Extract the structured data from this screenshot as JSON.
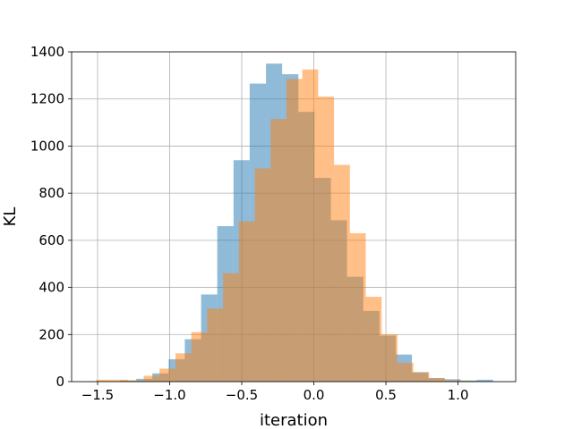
{
  "chart_data": {
    "type": "histogram",
    "title": "",
    "xlabel": "iteration",
    "ylabel": "KL",
    "xlim": [
      -1.68,
      1.4
    ],
    "ylim": [
      0,
      1400
    ],
    "xticks": [
      -1.5,
      -1.0,
      -0.5,
      0.0,
      0.5,
      1.0
    ],
    "xtick_labels": [
      "−1.5",
      "−1.0",
      "−0.5",
      "0.0",
      "0.5",
      "1.0"
    ],
    "yticks": [
      0,
      200,
      400,
      600,
      800,
      1000,
      1200,
      1400
    ],
    "ytick_labels": [
      "0",
      "200",
      "400",
      "600",
      "800",
      "1000",
      "1200",
      "1400"
    ],
    "grid": true,
    "legend": false,
    "series": [
      {
        "color": "#1f77b4",
        "opacity": 0.5,
        "bins": [
          {
            "x0": -1.345,
            "x1": -1.232,
            "count": 5
          },
          {
            "x0": -1.232,
            "x1": -1.12,
            "count": 12
          },
          {
            "x0": -1.12,
            "x1": -1.007,
            "count": 35
          },
          {
            "x0": -1.007,
            "x1": -0.895,
            "count": 95
          },
          {
            "x0": -0.895,
            "x1": -0.782,
            "count": 180
          },
          {
            "x0": -0.782,
            "x1": -0.67,
            "count": 370
          },
          {
            "x0": -0.67,
            "x1": -0.557,
            "count": 660
          },
          {
            "x0": -0.557,
            "x1": -0.445,
            "count": 940
          },
          {
            "x0": -0.445,
            "x1": -0.332,
            "count": 1265
          },
          {
            "x0": -0.332,
            "x1": -0.22,
            "count": 1350
          },
          {
            "x0": -0.22,
            "x1": -0.107,
            "count": 1305
          },
          {
            "x0": -0.107,
            "x1": 0.005,
            "count": 1145
          },
          {
            "x0": 0.005,
            "x1": 0.118,
            "count": 865
          },
          {
            "x0": 0.118,
            "x1": 0.23,
            "count": 685
          },
          {
            "x0": 0.23,
            "x1": 0.343,
            "count": 445
          },
          {
            "x0": 0.343,
            "x1": 0.455,
            "count": 300
          },
          {
            "x0": 0.455,
            "x1": 0.568,
            "count": 195
          },
          {
            "x0": 0.568,
            "x1": 0.68,
            "count": 115
          },
          {
            "x0": 0.68,
            "x1": 0.793,
            "count": 40
          },
          {
            "x0": 0.793,
            "x1": 0.905,
            "count": 15
          },
          {
            "x0": 0.905,
            "x1": 1.018,
            "count": 10
          },
          {
            "x0": 1.018,
            "x1": 1.13,
            "count": 5
          },
          {
            "x0": 1.13,
            "x1": 1.243,
            "count": 8
          }
        ]
      },
      {
        "color": "#ff7f0e",
        "opacity": 0.5,
        "bins": [
          {
            "x0": -1.51,
            "x1": -1.4,
            "count": 8
          },
          {
            "x0": -1.4,
            "x1": -1.29,
            "count": 8
          },
          {
            "x0": -1.29,
            "x1": -1.18,
            "count": 5
          },
          {
            "x0": -1.18,
            "x1": -1.07,
            "count": 25
          },
          {
            "x0": -1.07,
            "x1": -0.96,
            "count": 55
          },
          {
            "x0": -0.96,
            "x1": -0.85,
            "count": 120
          },
          {
            "x0": -0.85,
            "x1": -0.74,
            "count": 210
          },
          {
            "x0": -0.74,
            "x1": -0.63,
            "count": 310
          },
          {
            "x0": -0.63,
            "x1": -0.52,
            "count": 460
          },
          {
            "x0": -0.52,
            "x1": -0.41,
            "count": 680
          },
          {
            "x0": -0.41,
            "x1": -0.3,
            "count": 905
          },
          {
            "x0": -0.3,
            "x1": -0.19,
            "count": 1115
          },
          {
            "x0": -0.19,
            "x1": -0.08,
            "count": 1285
          },
          {
            "x0": -0.08,
            "x1": 0.03,
            "count": 1325
          },
          {
            "x0": 0.03,
            "x1": 0.14,
            "count": 1210
          },
          {
            "x0": 0.14,
            "x1": 0.25,
            "count": 920
          },
          {
            "x0": 0.25,
            "x1": 0.36,
            "count": 630
          },
          {
            "x0": 0.36,
            "x1": 0.47,
            "count": 360
          },
          {
            "x0": 0.47,
            "x1": 0.58,
            "count": 200
          },
          {
            "x0": 0.58,
            "x1": 0.69,
            "count": 80
          },
          {
            "x0": 0.69,
            "x1": 0.8,
            "count": 40
          },
          {
            "x0": 0.8,
            "x1": 0.91,
            "count": 15
          },
          {
            "x0": 0.91,
            "x1": 1.02,
            "count": 5
          },
          {
            "x0": 1.02,
            "x1": 1.13,
            "count": 3
          }
        ]
      }
    ]
  }
}
